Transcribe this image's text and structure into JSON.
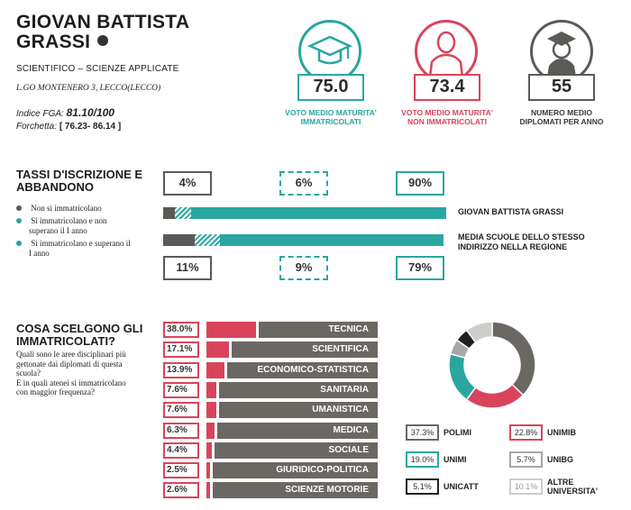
{
  "school": {
    "name_line1": "GIOVAN BATTISTA",
    "name_line2": "GRASSI",
    "type": "SCIENTIFICO – SCIENZE APPLICATE",
    "address": "L.GO MONTENERO 3, LECCO(LECCO)",
    "fga_label": "Indice FGA:",
    "fga_value": "81.10/100",
    "forchetta_label": "Forchetta:",
    "forchetta_value": "[ 76.23- 86.14 ]"
  },
  "stats": [
    {
      "value": "75.0",
      "label_line1": "VOTO MEDIO MATURITA'",
      "label_line2": "IMMATRICOLATI",
      "color": "#2aa6a1",
      "icon": "graduation-cap-icon"
    },
    {
      "value": "73.4",
      "label_line1": "VOTO MEDIO MATURITA'",
      "label_line2": "NON IMMATRICOLATI",
      "color": "#d9445c",
      "icon": "person-icon"
    },
    {
      "value": "55",
      "label_line1": "NUMERO MEDIO",
      "label_line2": "DIPLOMATI PER ANNO",
      "color": "#5c5a57",
      "icon": "graduate-person-icon"
    }
  ],
  "tassi": {
    "title_line1": "TASSI D'ISCRIZIONE E",
    "title_line2": "ABBANDONO",
    "legend": [
      {
        "text": "Non si immatricolano",
        "color": "#5c5a57"
      },
      {
        "text": "Si immatricolano e non superano il I anno",
        "color": "#2aa6a1"
      },
      {
        "text": "Si immatricolano e superano il I anno",
        "color": "#2aa6a1"
      }
    ],
    "school_row": {
      "label": "GIOVAN BATTISTA GRASSI",
      "values": [
        "4%",
        "6%",
        "90%"
      ],
      "fractions": [
        0.04,
        0.06,
        0.9
      ]
    },
    "region_row": {
      "label_line1": "MEDIA SCUOLE DELLO STESSO",
      "label_line2": "INDIRIZZO NELLA REGIONE",
      "values": [
        "11%",
        "9%",
        "79%"
      ],
      "fractions": [
        0.11,
        0.09,
        0.79
      ]
    }
  },
  "scelte": {
    "title_line1": "COSA SCELGONO GLI",
    "title_line2": "IMMATRICOLATI?",
    "desc_line1": "Quali sono le aree disciplinari più",
    "desc_line2": "gettonate dai diplomati di questa",
    "desc_line3": "scuola?",
    "desc_line4": "E in quali atenei si immatricolano",
    "desc_line5": "con maggior frequenza?",
    "areas": [
      {
        "pct": "38.0%",
        "value": 38.0,
        "name": "TECNICA"
      },
      {
        "pct": "17.1%",
        "value": 17.1,
        "name": "SCIENTIFICA"
      },
      {
        "pct": "13.9%",
        "value": 13.9,
        "name": "ECONOMICO-STATISTICA"
      },
      {
        "pct": "7.6%",
        "value": 7.6,
        "name": "SANITARIA"
      },
      {
        "pct": "7.6%",
        "value": 7.6,
        "name": "UMANISTICA"
      },
      {
        "pct": "6.3%",
        "value": 6.3,
        "name": "MEDICA"
      },
      {
        "pct": "4.4%",
        "value": 4.4,
        "name": "SOCIALE"
      },
      {
        "pct": "2.5%",
        "value": 2.5,
        "name": "GIURIDICO-POLITICA"
      },
      {
        "pct": "2.6%",
        "value": 2.6,
        "name": "SCIENZE MOTORIE"
      }
    ]
  },
  "chart_data": {
    "type": "pie",
    "labels": [
      "POLIMI",
      "UNIMIB",
      "UNIMI",
      "UNIBG",
      "UNICATT",
      "ALTRE UNIVERSITA'"
    ],
    "values": [
      37.3,
      22.8,
      19.0,
      5.7,
      5.1,
      10.1
    ],
    "colors": [
      "#6b6864",
      "#d9445c",
      "#2aa6a1",
      "#a9a7a4",
      "#1f1f1f",
      "#cfcdca"
    ]
  },
  "universities": [
    {
      "pct": "37.3%",
      "name": "POLIMI",
      "color": "#6b6864"
    },
    {
      "pct": "22.8%",
      "name": "UNIMIB",
      "color": "#d9445c"
    },
    {
      "pct": "19.0%",
      "name": "UNIMI",
      "color": "#2aa6a1"
    },
    {
      "pct": "5.7%",
      "name": "UNIBG",
      "color": "#a9a7a4"
    },
    {
      "pct": "5.1%",
      "name": "UNICATT",
      "color": "#1f1f1f"
    },
    {
      "pct": "10.1%",
      "name_line1": "ALTRE",
      "name_line2": "UNIVERSITA'",
      "color": "#cfcdca"
    }
  ]
}
